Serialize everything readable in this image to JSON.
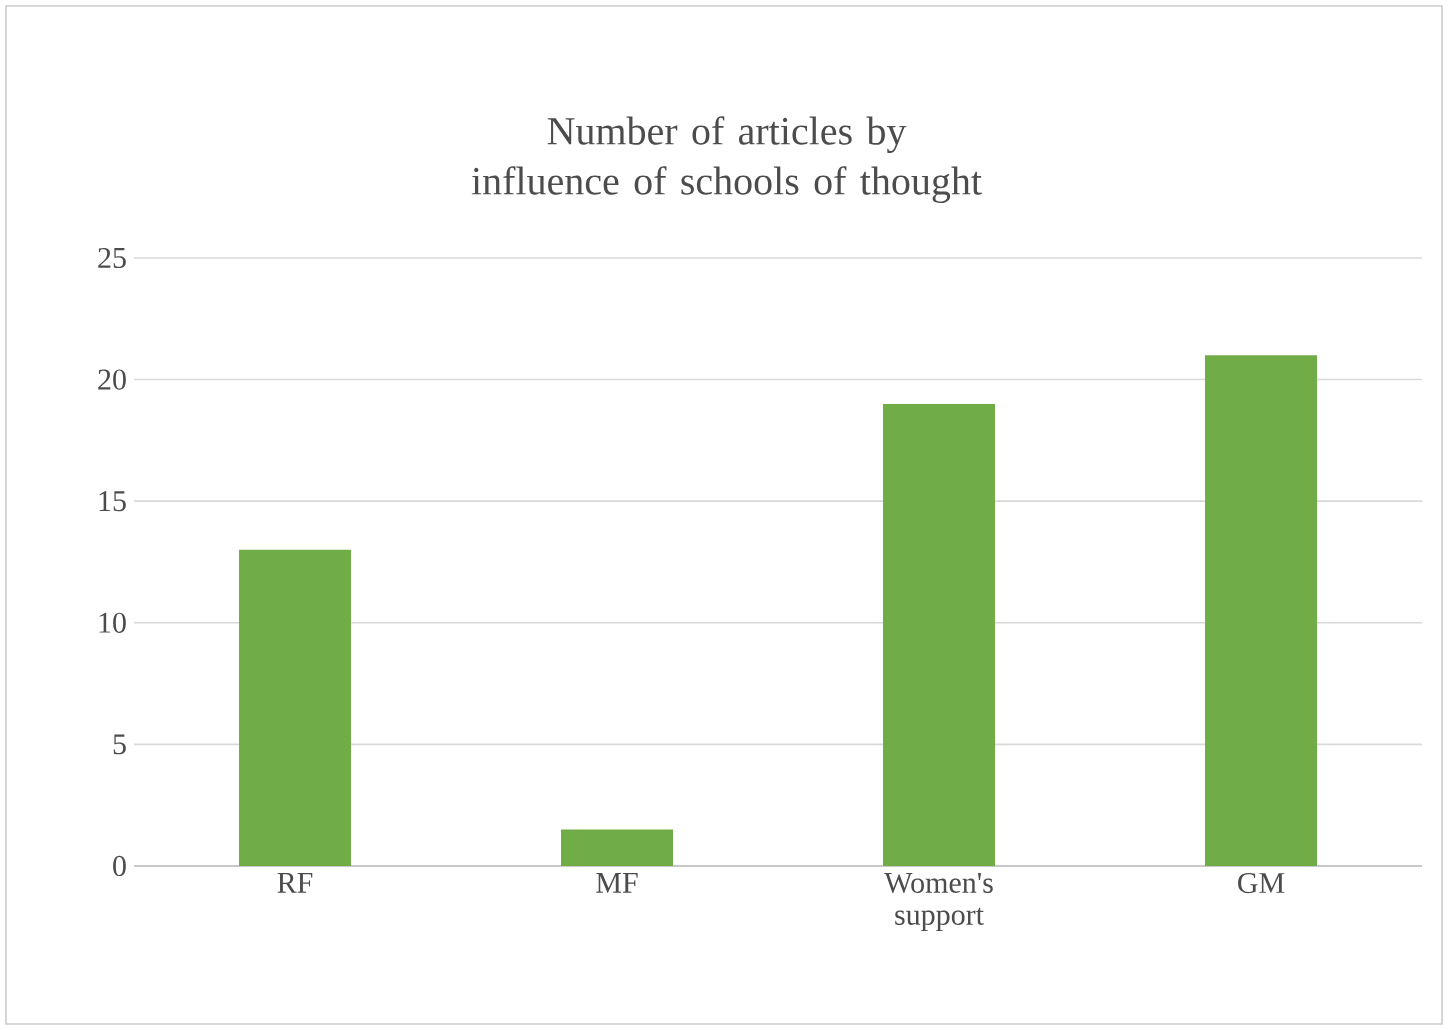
{
  "chart_data": {
    "type": "bar",
    "title": "Number of articles by influence of schools of thought",
    "categories": [
      "RF",
      "MF",
      "Women's support",
      "GM"
    ],
    "values": [
      13,
      1.5,
      19,
      21
    ],
    "color": "#70ad47",
    "ylim": [
      0,
      25
    ],
    "yticks": [
      0,
      5,
      10,
      15,
      20,
      25
    ],
    "grid": "y"
  }
}
